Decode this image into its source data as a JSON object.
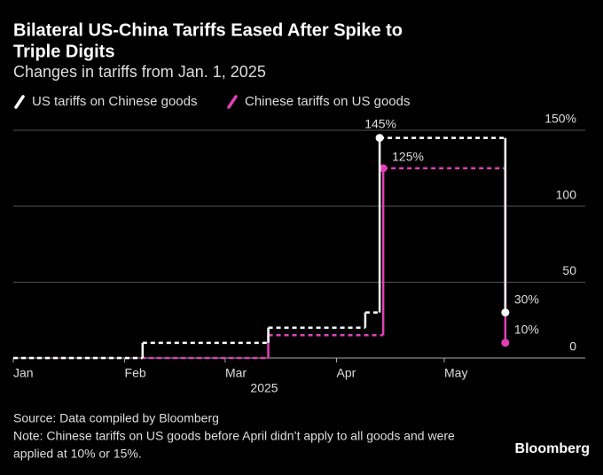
{
  "chart_data": {
    "type": "step",
    "title": "Bilateral US-China Tariffs Eased After Spike to Triple Digits",
    "subtitle": "Changes in tariffs from Jan. 1, 2025",
    "xlabel": "2025",
    "source": "Source: Data compiled by Bloomberg",
    "note": [
      "Note: Chinese tariffs on US goods before April didn’t apply to all goods and were",
      "applied at 10% or 15%."
    ],
    "brand": "Bloomberg",
    "xlim": [
      0,
      160
    ],
    "xticks": [
      {
        "value": 0,
        "label": "Jan"
      },
      {
        "value": 31,
        "label": "Feb"
      },
      {
        "value": 59,
        "label": "Mar"
      },
      {
        "value": 90,
        "label": "Apr"
      },
      {
        "value": 120,
        "label": "May"
      }
    ],
    "ylim": [
      0,
      150
    ],
    "yticks": [
      {
        "value": 150,
        "label": "150%"
      },
      100,
      50,
      0
    ],
    "grid": true,
    "series": [
      {
        "name": "US tariffs on Chinese goods",
        "color": "#ffffff",
        "x": [
          0,
          36,
          71,
          98,
          102,
          137
        ],
        "values": [
          0,
          10,
          20,
          30,
          145,
          30
        ],
        "value_labels": [
          null,
          null,
          null,
          null,
          "145%",
          "30%"
        ]
      },
      {
        "name": "Chinese tariffs on US goods",
        "color": "#e23fb7",
        "x": [
          0,
          71,
          103,
          137
        ],
        "values": [
          0,
          15,
          125,
          10
        ],
        "value_labels": [
          null,
          null,
          "125%",
          "10%"
        ]
      }
    ]
  }
}
